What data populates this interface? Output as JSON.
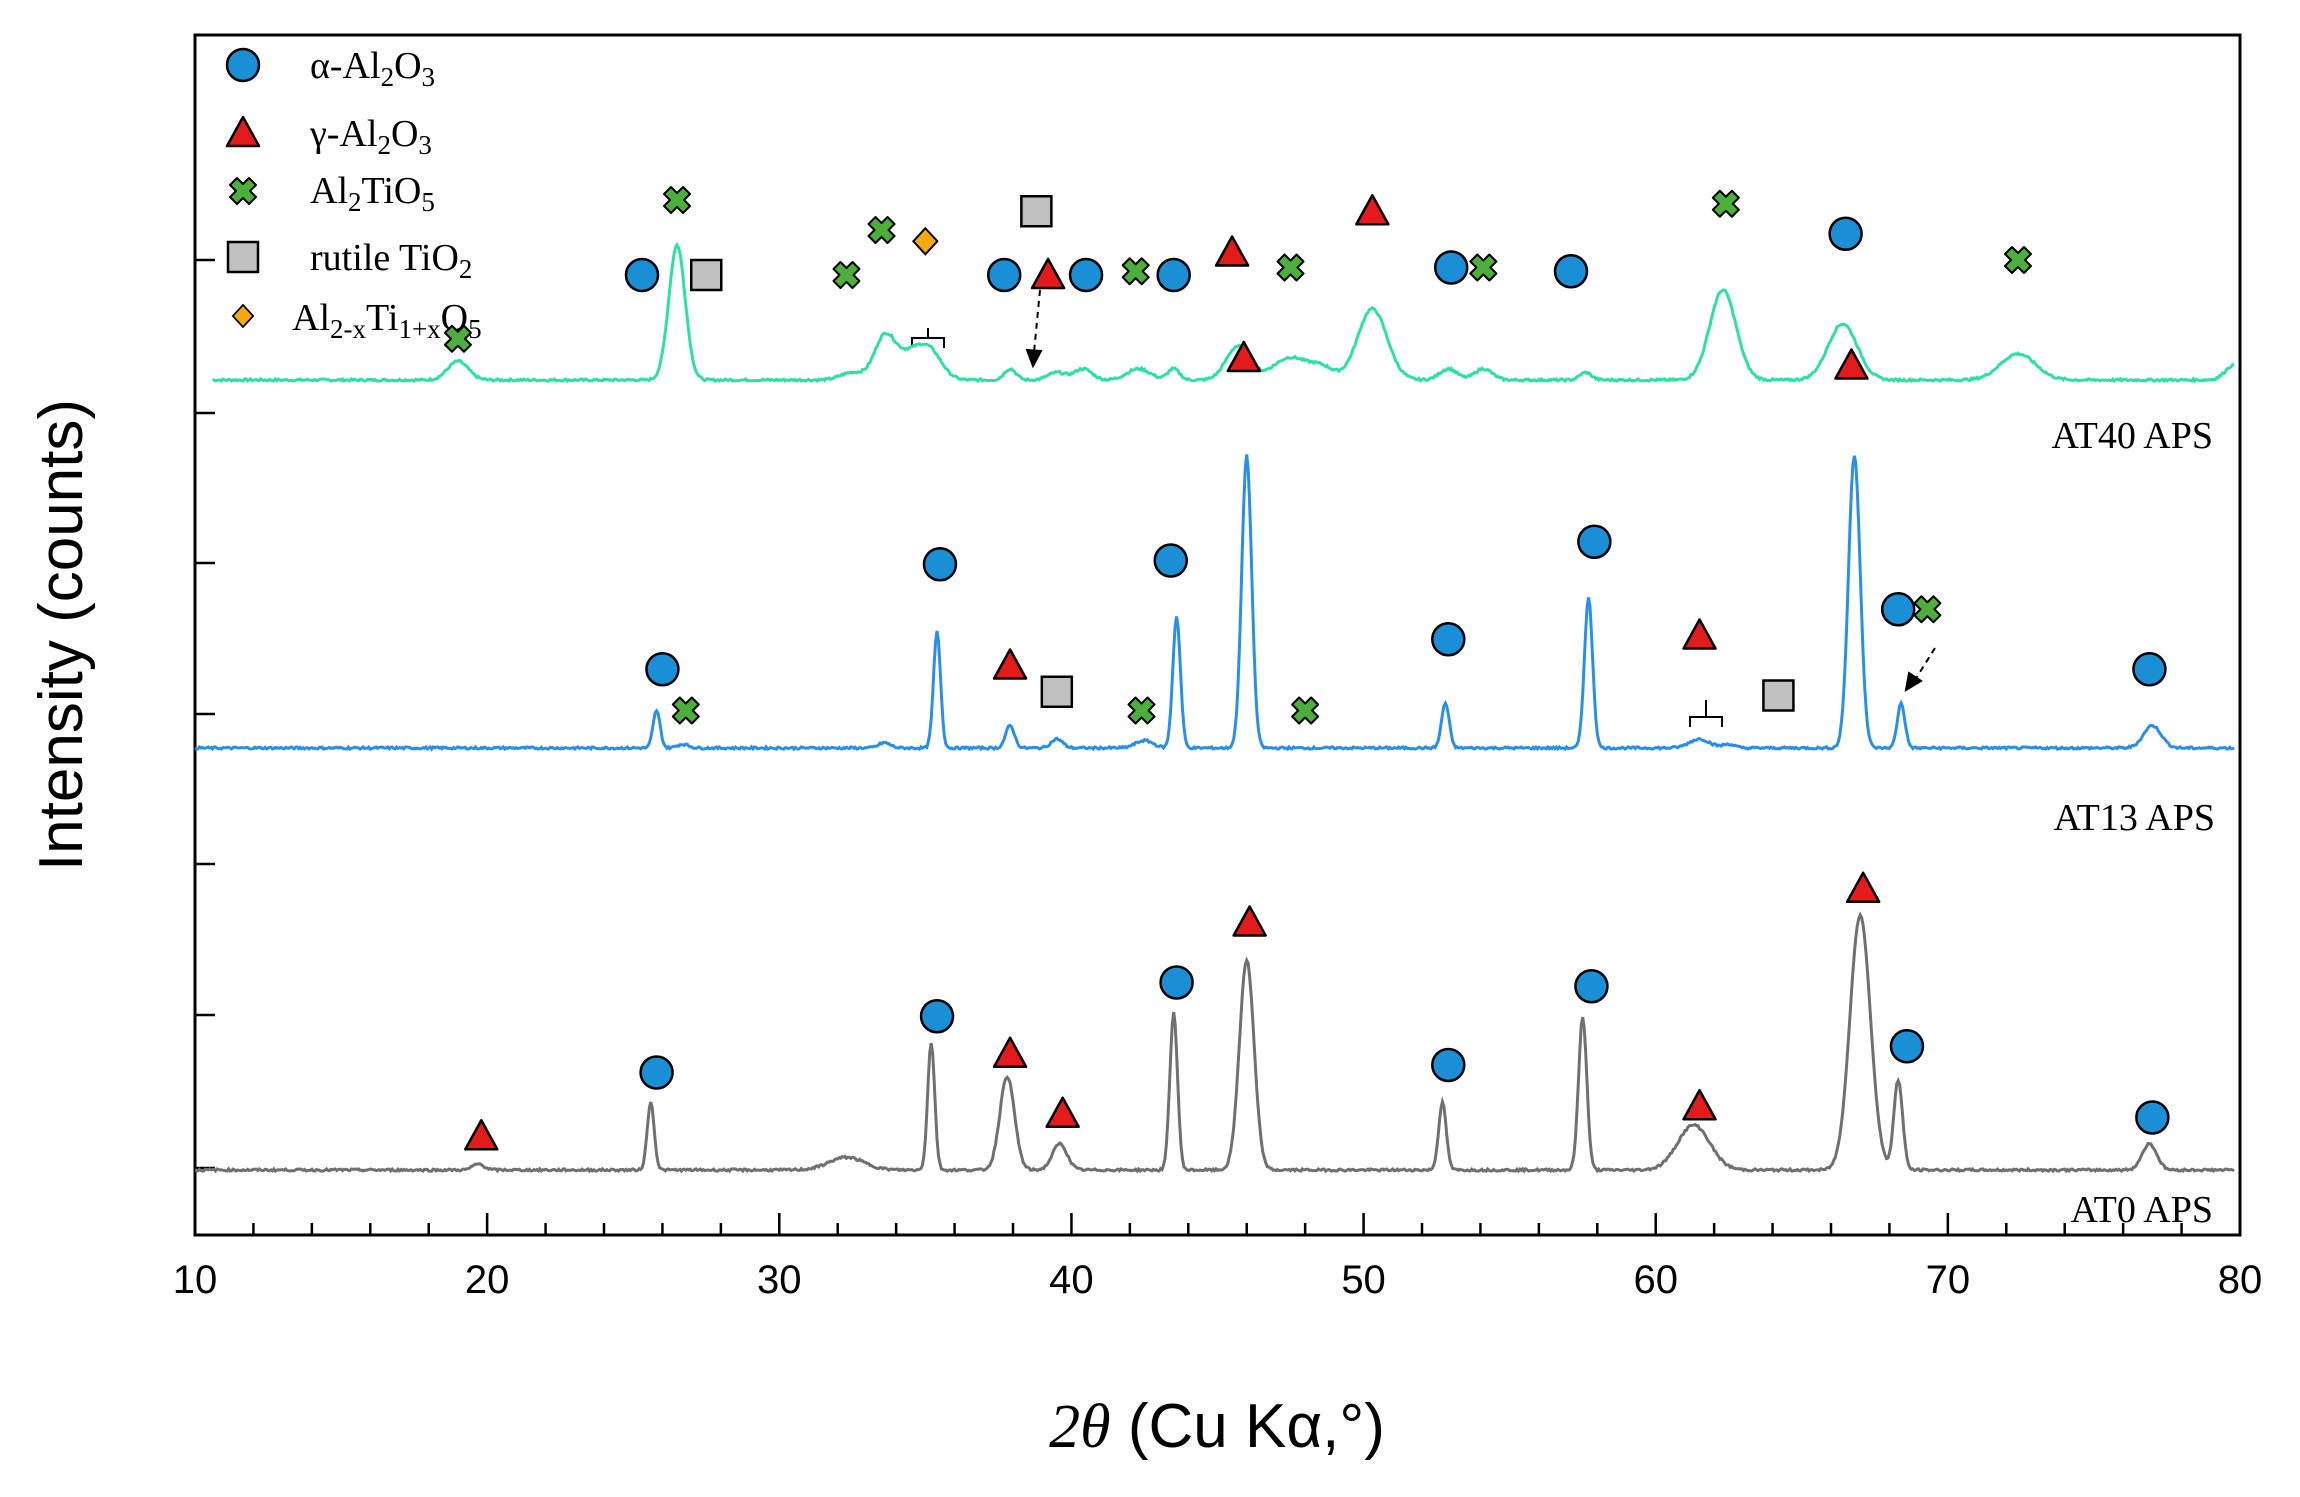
{
  "chart_data": {
    "type": "line",
    "title": "",
    "xlabel": {
      "prefix": "2θ",
      "rest": " (Cu Kα,°)"
    },
    "ylabel": "Intensity (counts)",
    "xlim": [
      10,
      80
    ],
    "xticks": [
      "10",
      "20",
      "30",
      "40",
      "50",
      "60",
      "70",
      "80"
    ],
    "y_tick_labels_shown": false,
    "colors": {
      "alpha": "#1a8fd6",
      "gamma": "#e31b1b",
      "al2tio5": "#4caf3c",
      "rutile": "#c0c0c0",
      "alti": "#f5a90d",
      "AT40": "#2ee0a5",
      "AT13": "#2a8fe6",
      "AT0": "#707070"
    },
    "legend": [
      {
        "key": "alpha",
        "marker": "circle",
        "parts": [
          [
            "α-Al",
            "n"
          ],
          [
            "2",
            "sub"
          ],
          [
            "O",
            "n"
          ],
          [
            "3",
            "sub"
          ]
        ]
      },
      {
        "key": "gamma",
        "marker": "triangle",
        "parts": [
          [
            "γ-Al",
            "n"
          ],
          [
            "2",
            "sub"
          ],
          [
            "O",
            "n"
          ],
          [
            "3",
            "sub"
          ]
        ]
      },
      {
        "key": "al2tio5",
        "marker": "cross",
        "parts": [
          [
            "Al",
            "n"
          ],
          [
            "2",
            "sub"
          ],
          [
            "TiO",
            "n"
          ],
          [
            "5",
            "sub"
          ]
        ]
      },
      {
        "key": "rutile",
        "marker": "square",
        "parts": [
          [
            "rutile TiO",
            "n"
          ],
          [
            "2",
            "sub"
          ]
        ]
      },
      {
        "key": "alti",
        "marker": "diamond",
        "parts": [
          [
            "Al",
            "n"
          ],
          [
            "2-x",
            "sub"
          ],
          [
            "Ti",
            "n"
          ],
          [
            "1+x",
            "sub"
          ],
          [
            "O",
            "n"
          ],
          [
            "5",
            "sub"
          ]
        ]
      }
    ],
    "series": [
      {
        "name": "AT40 APS",
        "color_key": "AT40",
        "baseline": 1.0,
        "peaks": [
          [
            19.0,
            0.25,
            0.35
          ],
          [
            26.5,
            1.8,
            0.28
          ],
          [
            32.5,
            0.1,
            0.4
          ],
          [
            33.6,
            0.55,
            0.35
          ],
          [
            34.5,
            0.35,
            0.5
          ],
          [
            35.2,
            0.3,
            0.4
          ],
          [
            37.9,
            0.15,
            0.2
          ],
          [
            39.5,
            0.1,
            0.3
          ],
          [
            40.4,
            0.15,
            0.3
          ],
          [
            42.3,
            0.15,
            0.4
          ],
          [
            43.5,
            0.15,
            0.2
          ],
          [
            45.7,
            0.45,
            0.4
          ],
          [
            47.5,
            0.3,
            0.6
          ],
          [
            48.6,
            0.15,
            0.4
          ],
          [
            50.3,
            0.95,
            0.5
          ],
          [
            52.9,
            0.15,
            0.3
          ],
          [
            54.1,
            0.15,
            0.3
          ],
          [
            57.6,
            0.1,
            0.2
          ],
          [
            62.3,
            1.2,
            0.45
          ],
          [
            66.4,
            0.75,
            0.5
          ],
          [
            72.4,
            0.35,
            0.6
          ],
          [
            79.8,
            0.2,
            0.3
          ]
        ],
        "markers": [
          {
            "type": "circle",
            "x": 25.3,
            "y": 1.4
          },
          {
            "type": "square",
            "x": 27.5,
            "y": 1.4
          },
          {
            "type": "cross",
            "x": 19.0,
            "y": 0.55
          },
          {
            "type": "cross",
            "x": 26.5,
            "y": 2.4
          },
          {
            "type": "cross",
            "x": 32.3,
            "y": 1.4
          },
          {
            "type": "cross",
            "x": 33.5,
            "y": 2.0
          },
          {
            "type": "diamond",
            "x": 35.0,
            "y": 1.85
          },
          {
            "type": "circle",
            "x": 37.7,
            "y": 1.4
          },
          {
            "type": "triangle",
            "x": 39.2,
            "y": 1.4
          },
          {
            "type": "square",
            "x": 38.8,
            "y": 2.25
          },
          {
            "type": "circle",
            "x": 40.5,
            "y": 1.4
          },
          {
            "type": "cross",
            "x": 42.2,
            "y": 1.45
          },
          {
            "type": "circle",
            "x": 43.5,
            "y": 1.4
          },
          {
            "type": "triangle",
            "x": 45.5,
            "y": 1.7
          },
          {
            "type": "cross",
            "x": 47.5,
            "y": 1.5
          },
          {
            "type": "triangle",
            "x": 50.3,
            "y": 2.25
          },
          {
            "type": "circle",
            "x": 53.0,
            "y": 1.5
          },
          {
            "type": "cross",
            "x": 54.1,
            "y": 1.5
          },
          {
            "type": "circle",
            "x": 57.1,
            "y": 1.45
          },
          {
            "type": "cross",
            "x": 62.4,
            "y": 2.35
          },
          {
            "type": "circle",
            "x": 66.5,
            "y": 1.95
          },
          {
            "type": "cross",
            "x": 72.4,
            "y": 1.6
          }
        ]
      },
      {
        "name": "AT13 APS",
        "color_key": "AT13",
        "baseline": 0.0,
        "peaks": [
          [
            25.8,
            0.5,
            0.12
          ],
          [
            26.7,
            0.05,
            0.2
          ],
          [
            33.6,
            0.07,
            0.2
          ],
          [
            35.4,
            1.55,
            0.12
          ],
          [
            37.9,
            0.3,
            0.15
          ],
          [
            39.5,
            0.12,
            0.2
          ],
          [
            42.5,
            0.1,
            0.3
          ],
          [
            43.6,
            1.75,
            0.13
          ],
          [
            46.0,
            3.9,
            0.17
          ],
          [
            52.8,
            0.6,
            0.13
          ],
          [
            57.7,
            2.0,
            0.14
          ],
          [
            61.5,
            0.12,
            0.35
          ],
          [
            62.5,
            0.05,
            0.2
          ],
          [
            66.8,
            3.9,
            0.2
          ],
          [
            68.4,
            0.6,
            0.13
          ],
          [
            77.0,
            0.3,
            0.3
          ]
        ],
        "markers": [
          {
            "type": "circle",
            "x": 26.0,
            "y": 1.05
          },
          {
            "type": "cross",
            "x": 26.8,
            "y": 0.5
          },
          {
            "type": "circle",
            "x": 35.5,
            "y": 2.45
          },
          {
            "type": "triangle",
            "x": 37.9,
            "y": 1.1
          },
          {
            "type": "square",
            "x": 39.5,
            "y": 0.75
          },
          {
            "type": "cross",
            "x": 42.4,
            "y": 0.5
          },
          {
            "type": "circle",
            "x": 43.4,
            "y": 2.5
          },
          {
            "type": "cross",
            "x": 48.0,
            "y": 0.5
          },
          {
            "type": "triangle",
            "x": 45.9,
            "y": 5.2
          },
          {
            "type": "circle",
            "x": 52.9,
            "y": 1.45
          },
          {
            "type": "circle",
            "x": 57.9,
            "y": 2.75
          },
          {
            "type": "triangle",
            "x": 61.5,
            "y": 1.5
          },
          {
            "type": "square",
            "x": 64.2,
            "y": 0.7
          },
          {
            "type": "triangle",
            "x": 66.7,
            "y": 5.1
          },
          {
            "type": "circle",
            "x": 68.3,
            "y": 1.85
          },
          {
            "type": "cross",
            "x": 69.3,
            "y": 1.85
          },
          {
            "type": "circle",
            "x": 76.9,
            "y": 1.05
          }
        ]
      },
      {
        "name": "AT0 APS",
        "color_key": "AT0",
        "baseline": 0.0,
        "peaks": [
          [
            19.7,
            0.08,
            0.2
          ],
          [
            25.6,
            0.9,
            0.12
          ],
          [
            32.3,
            0.17,
            0.6
          ],
          [
            35.2,
            1.7,
            0.12
          ],
          [
            37.8,
            1.25,
            0.25
          ],
          [
            39.6,
            0.35,
            0.25
          ],
          [
            43.5,
            2.1,
            0.13
          ],
          [
            46.0,
            2.8,
            0.25
          ],
          [
            52.7,
            0.9,
            0.13
          ],
          [
            57.5,
            2.05,
            0.14
          ],
          [
            61.3,
            0.6,
            0.55
          ],
          [
            67.0,
            3.4,
            0.35
          ],
          [
            68.3,
            1.2,
            0.15
          ],
          [
            76.9,
            0.35,
            0.25
          ]
        ],
        "markers": [
          {
            "type": "triangle",
            "x": 19.8,
            "y": 0.45
          },
          {
            "type": "circle",
            "x": 25.8,
            "y": 1.3
          },
          {
            "type": "circle",
            "x": 35.4,
            "y": 2.05
          },
          {
            "type": "triangle",
            "x": 37.9,
            "y": 1.55
          },
          {
            "type": "triangle",
            "x": 39.7,
            "y": 0.75
          },
          {
            "type": "circle",
            "x": 43.6,
            "y": 2.5
          },
          {
            "type": "triangle",
            "x": 46.1,
            "y": 3.3
          },
          {
            "type": "circle",
            "x": 52.9,
            "y": 1.4
          },
          {
            "type": "circle",
            "x": 57.8,
            "y": 2.45
          },
          {
            "type": "triangle",
            "x": 61.5,
            "y": 0.85
          },
          {
            "type": "triangle",
            "x": 67.1,
            "y": 3.75
          },
          {
            "type": "circle",
            "x": 68.6,
            "y": 1.65
          },
          {
            "type": "circle",
            "x": 77.0,
            "y": 0.7
          }
        ]
      }
    ]
  }
}
